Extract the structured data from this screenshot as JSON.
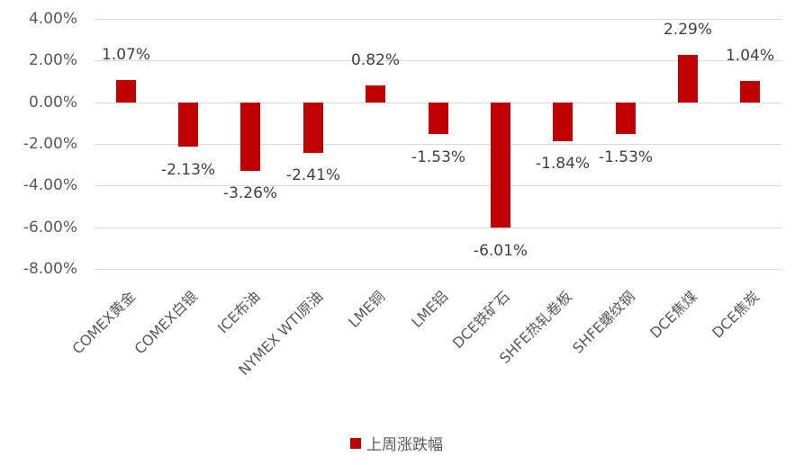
{
  "chart_data": {
    "type": "bar",
    "title": "",
    "xlabel": "",
    "ylabel": "",
    "ylim": [
      -8.0,
      4.0
    ],
    "yticks": [
      "4.00%",
      "2.00%",
      "0.00%",
      "-2.00%",
      "-4.00%",
      "-6.00%",
      "-8.00%"
    ],
    "grid": true,
    "legend_position": "bottom",
    "categories": [
      "COMEX黄金",
      "COMEX白银",
      "ICE布油",
      "NYMEX WTI原油",
      "LME铜",
      "LME铝",
      "DCE铁矿石",
      "SHFE热轧卷板",
      "SHFE螺纹钢",
      "DCE焦煤",
      "DCE焦炭"
    ],
    "series": [
      {
        "name": "上周涨跌幅",
        "color": "#c00000",
        "values": [
          1.07,
          -2.13,
          -3.26,
          -2.41,
          0.82,
          -1.53,
          -6.01,
          -1.84,
          -1.53,
          2.29,
          1.04
        ],
        "labels": [
          "1.07%",
          "-2.13%",
          "-3.26%",
          "-2.41%",
          "0.82%",
          "-1.53%",
          "-6.01%",
          "-1.84%",
          "-1.53%",
          "2.29%",
          "1.04%"
        ]
      }
    ]
  },
  "legend": {
    "label": "上周涨跌幅"
  }
}
